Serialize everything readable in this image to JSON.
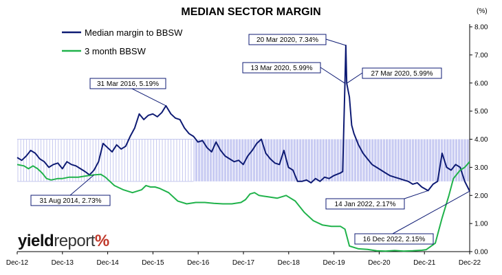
{
  "chart_data": {
    "type": "line",
    "title": "MEDIAN SECTOR MARGIN",
    "unit": "(%)",
    "ylim": [
      0,
      8
    ],
    "yticks": [
      "0.00",
      "1.00",
      "2.00",
      "3.00",
      "4.00",
      "5.00",
      "6.00",
      "7.00",
      "8.00"
    ],
    "xticks": [
      "Dec-12",
      "Dec-13",
      "Dec-14",
      "Dec-15",
      "Dec-16",
      "Dec-17",
      "Dec-18",
      "Dec-19",
      "Dec-20",
      "Dec-21",
      "Dec-22"
    ],
    "legend_position": "top-left",
    "shaded_range": {
      "from": 2.5,
      "to": 4.0
    },
    "series": [
      {
        "name": "Median margin to BBSW",
        "color": "#0d1a73",
        "points": [
          [
            2012.95,
            3.35
          ],
          [
            2013.05,
            3.25
          ],
          [
            2013.15,
            3.4
          ],
          [
            2013.25,
            3.6
          ],
          [
            2013.35,
            3.5
          ],
          [
            2013.45,
            3.3
          ],
          [
            2013.55,
            3.2
          ],
          [
            2013.65,
            3.0
          ],
          [
            2013.75,
            3.1
          ],
          [
            2013.85,
            3.15
          ],
          [
            2013.95,
            2.95
          ],
          [
            2014.05,
            3.2
          ],
          [
            2014.15,
            3.1
          ],
          [
            2014.25,
            3.05
          ],
          [
            2014.35,
            2.95
          ],
          [
            2014.45,
            2.85
          ],
          [
            2014.55,
            2.73
          ],
          [
            2014.65,
            2.9
          ],
          [
            2014.75,
            3.2
          ],
          [
            2014.85,
            3.85
          ],
          [
            2014.95,
            3.7
          ],
          [
            2015.05,
            3.55
          ],
          [
            2015.15,
            3.8
          ],
          [
            2015.25,
            3.65
          ],
          [
            2015.35,
            3.75
          ],
          [
            2015.45,
            4.1
          ],
          [
            2015.55,
            4.4
          ],
          [
            2015.65,
            4.9
          ],
          [
            2015.75,
            4.7
          ],
          [
            2015.85,
            4.85
          ],
          [
            2015.95,
            4.9
          ],
          [
            2016.05,
            4.8
          ],
          [
            2016.15,
            4.95
          ],
          [
            2016.24,
            5.19
          ],
          [
            2016.35,
            4.9
          ],
          [
            2016.45,
            4.75
          ],
          [
            2016.55,
            4.7
          ],
          [
            2016.65,
            4.4
          ],
          [
            2016.75,
            4.2
          ],
          [
            2016.85,
            4.1
          ],
          [
            2016.95,
            3.9
          ],
          [
            2017.05,
            3.95
          ],
          [
            2017.15,
            3.7
          ],
          [
            2017.25,
            3.55
          ],
          [
            2017.35,
            3.9
          ],
          [
            2017.45,
            3.6
          ],
          [
            2017.55,
            3.4
          ],
          [
            2017.65,
            3.3
          ],
          [
            2017.75,
            3.2
          ],
          [
            2017.85,
            3.25
          ],
          [
            2017.95,
            3.1
          ],
          [
            2018.05,
            3.4
          ],
          [
            2018.15,
            3.6
          ],
          [
            2018.25,
            3.85
          ],
          [
            2018.35,
            4.0
          ],
          [
            2018.45,
            3.5
          ],
          [
            2018.55,
            3.3
          ],
          [
            2018.65,
            3.15
          ],
          [
            2018.75,
            3.1
          ],
          [
            2018.85,
            3.6
          ],
          [
            2018.95,
            3.0
          ],
          [
            2019.05,
            2.9
          ],
          [
            2019.15,
            2.5
          ],
          [
            2019.25,
            2.5
          ],
          [
            2019.35,
            2.55
          ],
          [
            2019.45,
            2.45
          ],
          [
            2019.55,
            2.6
          ],
          [
            2019.65,
            2.5
          ],
          [
            2019.75,
            2.65
          ],
          [
            2019.85,
            2.6
          ],
          [
            2019.95,
            2.7
          ],
          [
            2020.1,
            2.8
          ],
          [
            2020.15,
            2.85
          ],
          [
            2020.2,
            5.99
          ],
          [
            2020.22,
            7.34
          ],
          [
            2020.24,
            5.99
          ],
          [
            2020.3,
            5.5
          ],
          [
            2020.35,
            4.5
          ],
          [
            2020.4,
            4.2
          ],
          [
            2020.5,
            3.8
          ],
          [
            2020.6,
            3.5
          ],
          [
            2020.7,
            3.3
          ],
          [
            2020.8,
            3.1
          ],
          [
            2020.9,
            3.0
          ],
          [
            2021.0,
            2.9
          ],
          [
            2021.1,
            2.8
          ],
          [
            2021.2,
            2.7
          ],
          [
            2021.3,
            2.65
          ],
          [
            2021.4,
            2.6
          ],
          [
            2021.5,
            2.55
          ],
          [
            2021.6,
            2.5
          ],
          [
            2021.7,
            2.4
          ],
          [
            2021.8,
            2.45
          ],
          [
            2021.9,
            2.3
          ],
          [
            2022.04,
            2.17
          ],
          [
            2022.15,
            2.4
          ],
          [
            2022.25,
            2.5
          ],
          [
            2022.35,
            3.5
          ],
          [
            2022.45,
            3.0
          ],
          [
            2022.55,
            2.9
          ],
          [
            2022.65,
            3.1
          ],
          [
            2022.75,
            3.0
          ],
          [
            2022.85,
            2.5
          ],
          [
            2022.96,
            2.15
          ]
        ]
      },
      {
        "name": "3 month BBSW",
        "color": "#1fb24a",
        "points": [
          [
            2012.95,
            3.1
          ],
          [
            2013.1,
            3.05
          ],
          [
            2013.2,
            2.95
          ],
          [
            2013.3,
            3.05
          ],
          [
            2013.4,
            2.95
          ],
          [
            2013.5,
            2.8
          ],
          [
            2013.6,
            2.6
          ],
          [
            2013.7,
            2.55
          ],
          [
            2013.85,
            2.6
          ],
          [
            2013.95,
            2.6
          ],
          [
            2014.1,
            2.65
          ],
          [
            2014.3,
            2.65
          ],
          [
            2014.5,
            2.7
          ],
          [
            2014.65,
            2.73
          ],
          [
            2014.8,
            2.75
          ],
          [
            2014.9,
            2.65
          ],
          [
            2015.0,
            2.5
          ],
          [
            2015.1,
            2.35
          ],
          [
            2015.3,
            2.2
          ],
          [
            2015.5,
            2.1
          ],
          [
            2015.7,
            2.2
          ],
          [
            2015.8,
            2.35
          ],
          [
            2015.9,
            2.3
          ],
          [
            2016.0,
            2.3
          ],
          [
            2016.1,
            2.25
          ],
          [
            2016.3,
            2.1
          ],
          [
            2016.5,
            1.8
          ],
          [
            2016.7,
            1.7
          ],
          [
            2016.9,
            1.75
          ],
          [
            2017.1,
            1.75
          ],
          [
            2017.3,
            1.72
          ],
          [
            2017.5,
            1.7
          ],
          [
            2017.7,
            1.7
          ],
          [
            2017.9,
            1.75
          ],
          [
            2018.0,
            1.85
          ],
          [
            2018.1,
            2.05
          ],
          [
            2018.2,
            2.1
          ],
          [
            2018.3,
            2.0
          ],
          [
            2018.5,
            1.95
          ],
          [
            2018.7,
            1.9
          ],
          [
            2018.9,
            2.0
          ],
          [
            2019.1,
            1.8
          ],
          [
            2019.3,
            1.4
          ],
          [
            2019.5,
            1.1
          ],
          [
            2019.7,
            0.95
          ],
          [
            2019.9,
            0.9
          ],
          [
            2020.1,
            0.9
          ],
          [
            2020.2,
            0.8
          ],
          [
            2020.3,
            0.2
          ],
          [
            2020.5,
            0.1
          ],
          [
            2020.7,
            0.08
          ],
          [
            2020.9,
            0.03
          ],
          [
            2021.1,
            0.02
          ],
          [
            2021.3,
            0.04
          ],
          [
            2021.5,
            0.02
          ],
          [
            2021.7,
            0.03
          ],
          [
            2021.9,
            0.05
          ],
          [
            2022.0,
            0.07
          ],
          [
            2022.2,
            0.3
          ],
          [
            2022.35,
            1.2
          ],
          [
            2022.5,
            2.0
          ],
          [
            2022.6,
            2.6
          ],
          [
            2022.75,
            2.9
          ],
          [
            2022.85,
            3.0
          ],
          [
            2022.96,
            3.2
          ]
        ]
      }
    ],
    "annotations": [
      {
        "text": "31 Mar 2016,  5.19%",
        "x": 2016.24,
        "y": 5.19
      },
      {
        "text": "31 Aug 2014,  2.73%",
        "x": 2014.65,
        "y": 2.73
      },
      {
        "text": "20 Mar 2020,  7.34%",
        "x": 2020.22,
        "y": 7.34
      },
      {
        "text": "13 Mar 2020,  5.99%",
        "x": 2020.2,
        "y": 5.99
      },
      {
        "text": "27 Mar 2020,  5.99%",
        "x": 2020.24,
        "y": 5.99
      },
      {
        "text": "14 Jan 2022,  2.17%",
        "x": 2022.04,
        "y": 2.17
      },
      {
        "text": "16 Dec 2022,  2.15%",
        "x": 2022.96,
        "y": 2.15
      }
    ]
  },
  "logo": {
    "part1": "yield",
    "part2": "report",
    "part3": "%"
  }
}
